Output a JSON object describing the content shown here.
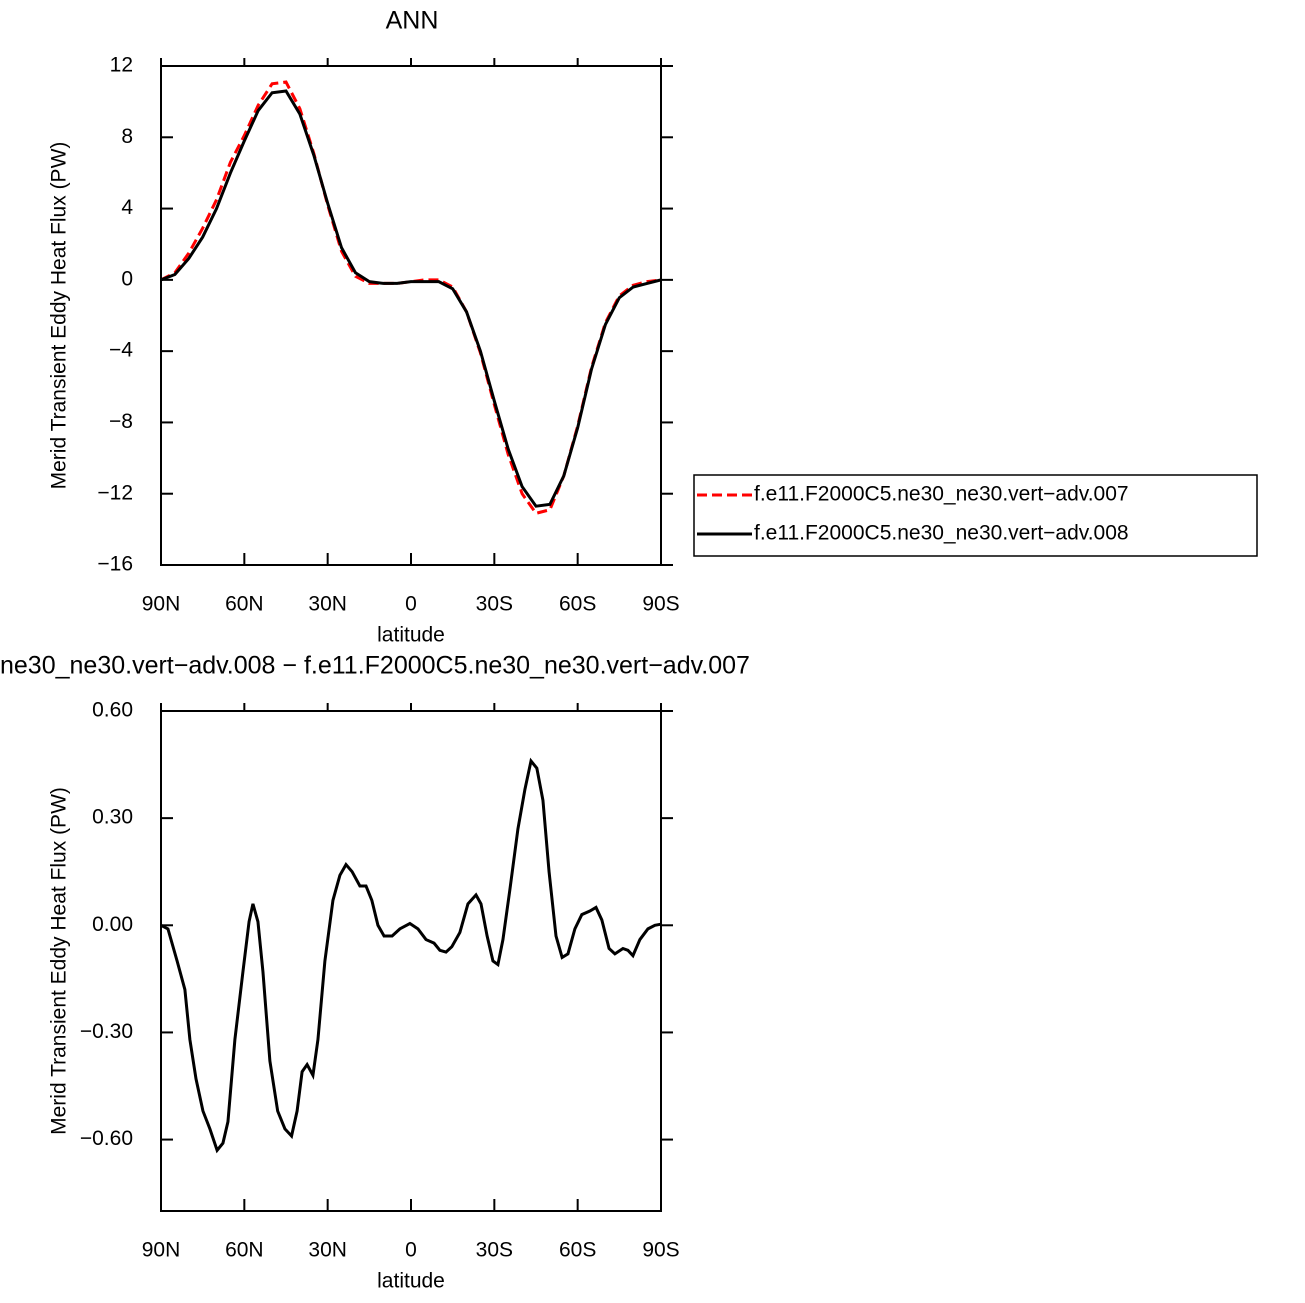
{
  "chart_data": [
    {
      "type": "line",
      "title": "ANN",
      "xlabel": "latitude",
      "ylabel": "Merid Transient Eddy Heat Flux (PW)",
      "x": [
        90,
        85,
        80,
        75,
        70,
        65,
        60,
        55,
        50,
        45,
        40,
        35,
        30,
        25,
        20,
        15,
        10,
        5,
        0,
        -5,
        -10,
        -15,
        -20,
        -25,
        -30,
        -35,
        -40,
        -45,
        -50,
        -55,
        -60,
        -65,
        -70,
        -75,
        -80,
        -85,
        -90
      ],
      "series": [
        {
          "name": "f.e11.F2000C5.ne30_ne30.vert−adv.007",
          "color": "#ff0000",
          "dash": "dashed",
          "values": [
            0,
            0.4,
            1.5,
            2.9,
            4.5,
            6.6,
            8.1,
            9.8,
            11.0,
            11.1,
            9.6,
            7.1,
            4.2,
            1.6,
            0.2,
            -0.2,
            -0.2,
            -0.2,
            -0.1,
            0,
            0,
            -0.4,
            -1.8,
            -4.1,
            -7.0,
            -9.8,
            -12.0,
            -13.1,
            -12.9,
            -11.0,
            -8.2,
            -4.9,
            -2.4,
            -0.9,
            -0.3,
            -0.1,
            0
          ]
        },
        {
          "name": "f.e11.F2000C5.ne30_ne30.vert−adv.008",
          "color": "#000000",
          "dash": "solid",
          "values": [
            0,
            0.3,
            1.2,
            2.4,
            4.0,
            6.0,
            7.8,
            9.5,
            10.5,
            10.6,
            9.3,
            7.0,
            4.3,
            1.8,
            0.4,
            -0.1,
            -0.2,
            -0.2,
            -0.1,
            -0.1,
            -0.1,
            -0.5,
            -1.8,
            -4.0,
            -6.8,
            -9.5,
            -11.6,
            -12.7,
            -12.6,
            -11.0,
            -8.3,
            -5.0,
            -2.5,
            -1.0,
            -0.4,
            -0.2,
            0
          ]
        }
      ],
      "xlim": [
        90,
        -90
      ],
      "xticks": [
        {
          "value": 90,
          "label": "90N"
        },
        {
          "value": 60,
          "label": "60N"
        },
        {
          "value": 30,
          "label": "30N"
        },
        0,
        {
          "value": -30,
          "label": "30S"
        },
        {
          "value": -60,
          "label": "60S"
        },
        {
          "value": -90,
          "label": "90S"
        }
      ],
      "ylim": [
        -16,
        12
      ],
      "yticks": [
        12,
        8,
        4,
        0,
        {
          "value": -4,
          "label": "−4"
        },
        {
          "value": -8,
          "label": "−8"
        },
        {
          "value": -12,
          "label": "−12"
        },
        {
          "value": -16,
          "label": "−16"
        }
      ],
      "legend": "right"
    },
    {
      "type": "line",
      "title": "ne30_ne30.vert−adv.008 − f.e11.F2000C5.ne30_ne30.vert−adv.007",
      "xlabel": "latitude",
      "ylabel": "Merid Transient Eddy Heat Flux (PW)",
      "x": [
        90,
        87.5,
        84.2,
        81.4,
        79.6,
        77.4,
        74.9,
        72.4,
        69.8,
        67.7,
        65.9,
        63.4,
        60.5,
        58.3,
        56.9,
        55.1,
        53.3,
        50.8,
        48,
        45.4,
        43,
        41,
        39.2,
        37.4,
        35.3,
        33.5,
        31,
        28.1,
        25.6,
        23.4,
        21.2,
        18.4,
        16.2,
        14.1,
        11.9,
        9.7,
        6.8,
        4,
        0.4,
        -2.5,
        -5.4,
        -8.3,
        -10.4,
        -12.6,
        -14.7,
        -17.6,
        -20.5,
        -23.4,
        -25.2,
        -27.4,
        -29.5,
        -31.3,
        -33.1,
        -35.6,
        -38.5,
        -41,
        -43.2,
        -45.3,
        -47.5,
        -49.7,
        -52.2,
        -54.4,
        -56.5,
        -59,
        -61.5,
        -64.4,
        -66.6,
        -68.7,
        -71.3,
        -73.4,
        -76.3,
        -78.1,
        -79.9,
        -82.4,
        -85.3,
        -87.8,
        -90
      ],
      "series": [
        {
          "color": "#000000",
          "dash": "solid",
          "values": [
            0,
            -0.01,
            -0.1,
            -0.18,
            -0.32,
            -0.43,
            -0.52,
            -0.57,
            -0.63,
            -0.61,
            -0.55,
            -0.32,
            -0.13,
            0.01,
            0.06,
            0.01,
            -0.13,
            -0.38,
            -0.52,
            -0.57,
            -0.59,
            -0.52,
            -0.41,
            -0.39,
            -0.42,
            -0.32,
            -0.1,
            0.07,
            0.14,
            0.17,
            0.15,
            0.11,
            0.11,
            0.07,
            0,
            -0.03,
            -0.03,
            -0.01,
            0.005,
            -0.01,
            -0.04,
            -0.05,
            -0.07,
            -0.075,
            -0.06,
            -0.02,
            0.06,
            0.085,
            0.06,
            -0.03,
            -0.1,
            -0.11,
            -0.04,
            0.1,
            0.27,
            0.38,
            0.46,
            0.44,
            0.35,
            0.15,
            -0.03,
            -0.09,
            -0.08,
            -0.01,
            0.03,
            0.04,
            0.05,
            0.015,
            -0.065,
            -0.08,
            -0.065,
            -0.07,
            -0.085,
            -0.04,
            -0.01,
            0,
            0.003
          ]
        }
      ],
      "xlim": [
        90,
        -90
      ],
      "xticks": [
        {
          "value": 90,
          "label": "90N"
        },
        {
          "value": 60,
          "label": "60N"
        },
        {
          "value": 30,
          "label": "30N"
        },
        0,
        {
          "value": -30,
          "label": "30S"
        },
        {
          "value": -60,
          "label": "60S"
        },
        {
          "value": -90,
          "label": "90S"
        }
      ],
      "ylim": [
        -0.8,
        0.6
      ],
      "yticks": [
        {
          "value": 0.6,
          "label": "0.60"
        },
        {
          "value": 0.3,
          "label": "0.30"
        },
        {
          "value": 0,
          "label": "0.00"
        },
        {
          "value": -0.3,
          "label": "−0.30"
        },
        {
          "value": -0.6,
          "label": "−0.60"
        }
      ]
    }
  ]
}
